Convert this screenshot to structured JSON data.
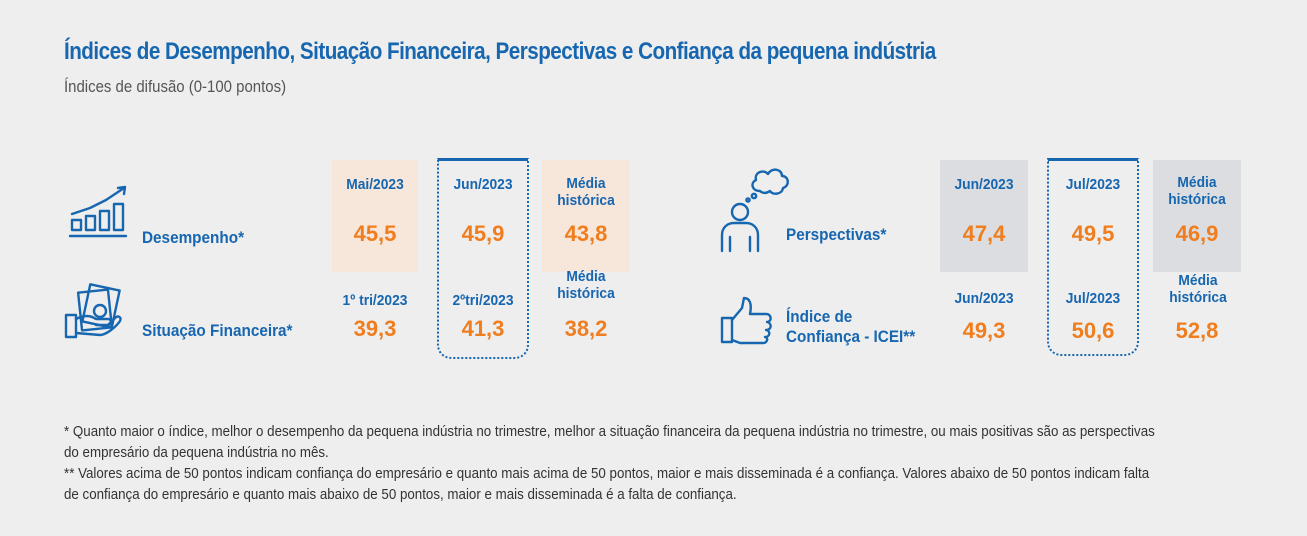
{
  "title": "Índices de Desempenho, Situação Financeira, Perspectivas e Confiança da pequena indústria",
  "subtitle": "Índices de difusão (0-100 pontos)",
  "left": {
    "headers": [
      "Mai/2023",
      "Jun/2023",
      "Média histórica"
    ],
    "rows": [
      {
        "label": "Desempenho*",
        "values": [
          "45,5",
          "45,9",
          "43,8"
        ]
      },
      {
        "label": "Situação Financeira*",
        "headers": [
          "1º tri/2023",
          "2ºtri/2023",
          "Média histórica"
        ],
        "values": [
          "39,3",
          "41,3",
          "38,2"
        ]
      }
    ]
  },
  "right": {
    "headers": [
      "Jun/2023",
      "Jul/2023",
      "Média histórica"
    ],
    "rows": [
      {
        "label": "Perspectivas*",
        "values": [
          "47,4",
          "49,5",
          "46,9"
        ]
      },
      {
        "label_line1": "Índice de",
        "label_line2": "Confiança - ICEI**",
        "headers": [
          "Jun/2023",
          "Jul/2023",
          "Média histórica"
        ],
        "values": [
          "49,3",
          "50,6",
          "52,8"
        ]
      }
    ]
  },
  "icons": [
    "growth-chart-icon",
    "hand-money-icon",
    "thinking-person-icon",
    "thumbs-up-icon"
  ],
  "colors": {
    "blue": "#1766b0",
    "orange": "#f07d1e",
    "peach": "#f7e6da",
    "gray": "#dcdde1"
  },
  "notes": [
    "* Quanto maior o índice, melhor o desempenho da pequena indústria no trimestre, melhor a situação financeira da pequena indústria no trimestre, ou mais positivas são as perspectivas do empresário da pequena indústria no mês.",
    "** Valores acima de 50 pontos indicam confiança do empresário e quanto mais acima de 50 pontos, maior e mais disseminada é a confiança. Valores abaixo de 50 pontos indicam falta de confiança do empresário e quanto mais abaixo de 50 pontos, maior e mais disseminada é a falta de confiança."
  ]
}
